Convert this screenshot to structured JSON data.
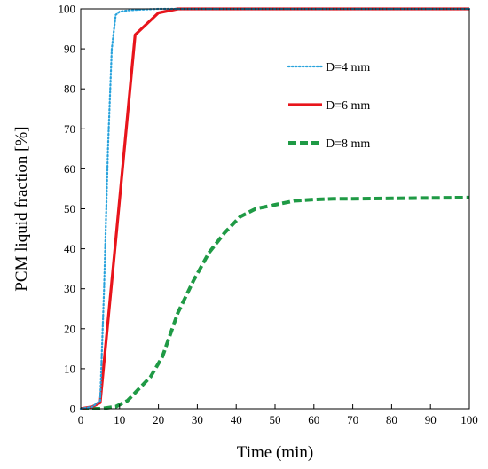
{
  "chart_data": {
    "type": "line",
    "title": "",
    "xlabel": "Time (min)",
    "ylabel": "PCM liquid fraction [%]",
    "xlim": [
      0,
      100
    ],
    "ylim": [
      0,
      100
    ],
    "xticks": [
      0,
      10,
      20,
      30,
      40,
      50,
      60,
      70,
      80,
      90,
      100
    ],
    "yticks": [
      0,
      10,
      20,
      30,
      40,
      50,
      60,
      70,
      80,
      90,
      100
    ],
    "grid": false,
    "legend_position": "top-right",
    "series": [
      {
        "name": "D=4 mm",
        "color": "#29a3dc",
        "style": "dotted",
        "x": [
          0,
          3,
          5,
          6,
          7,
          8,
          9,
          10,
          12,
          15,
          20,
          25,
          30,
          40,
          60,
          80,
          100
        ],
        "y": [
          0,
          0.5,
          2,
          30,
          65,
          90,
          98.5,
          99.3,
          99.6,
          99.8,
          100,
          100,
          100,
          100,
          100,
          100,
          100
        ]
      },
      {
        "name": "D=6 mm",
        "color": "#e8141b",
        "style": "solid",
        "x": [
          0,
          3,
          5,
          9,
          14,
          20,
          25,
          30,
          40,
          60,
          80,
          100
        ],
        "y": [
          0,
          0.5,
          1.5,
          42,
          93.5,
          99,
          100,
          100,
          100,
          100,
          100,
          100
        ]
      },
      {
        "name": "D=8 mm",
        "color": "#1f9a45",
        "style": "dashed",
        "x": [
          0,
          5,
          9,
          12,
          15,
          18,
          21,
          25,
          29,
          33,
          37,
          41,
          45,
          50,
          55,
          60,
          65,
          70,
          80,
          90,
          100
        ],
        "y": [
          0,
          0,
          0.5,
          2,
          5,
          8,
          13,
          24,
          32,
          39,
          44,
          48,
          50,
          51,
          52,
          52.3,
          52.5,
          52.5,
          52.6,
          52.7,
          52.8
        ]
      }
    ]
  }
}
